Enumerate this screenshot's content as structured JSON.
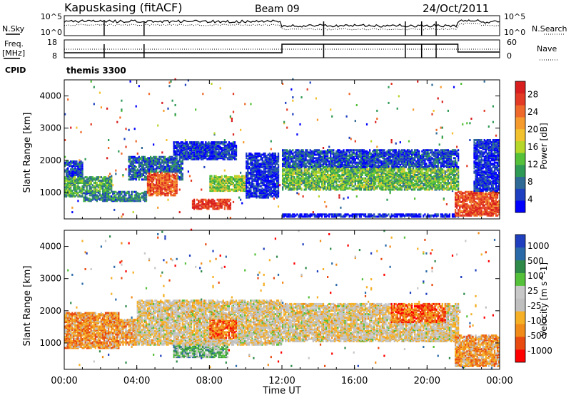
{
  "header": {
    "station": "Kapuskasing (fitACF)",
    "beam": "Beam 09",
    "date": "24/Oct/2011"
  },
  "noise_panel": {
    "left_label": "N.Sky",
    "right_label": "N.Search",
    "left_ticks": [
      "10^5",
      "10^0"
    ],
    "right_ticks": [
      "10^5",
      "10^0"
    ]
  },
  "freq_panel": {
    "left_label_1": "Freq.",
    "left_label_2": "[MHz]",
    "right_label": "Nave",
    "left_ticks": [
      "18",
      "8"
    ],
    "right_ticks": [
      "60",
      "0"
    ]
  },
  "cpid": {
    "label": "CPID",
    "program": "themis 3300"
  },
  "chart_data": [
    {
      "type": "heatmap",
      "panel": "power",
      "xlabel": "",
      "ylabel": "Slant Range [km]",
      "x_ticks": [
        "00:00",
        "04:00",
        "08:00",
        "12:00",
        "16:00",
        "20:00",
        "00:00"
      ],
      "y_ticks": [
        1000,
        2000,
        3000,
        4000
      ],
      "ylim": [
        180,
        4500
      ],
      "xlim_hours": [
        0,
        24
      ],
      "colorbar_label": "Power [dB]",
      "colorbar_ticks": [
        "28",
        "24",
        "20",
        "16",
        "12",
        "8",
        "4"
      ],
      "colorbar_colors": [
        "#0000ff",
        "#1e3fbf",
        "#2f6a96",
        "#2f9a55",
        "#55c03a",
        "#b7d62a",
        "#f2c12e",
        "#f59a2c",
        "#ef6a2a",
        "#e23a24",
        "#d81e1e"
      ],
      "bands": [
        {
          "t0": 0.0,
          "t1": 2.6,
          "r0": 820,
          "r1": 1450,
          "v": 0.35
        },
        {
          "t0": 0.0,
          "t1": 1.0,
          "r0": 1450,
          "r1": 1950,
          "v": 0.15
        },
        {
          "t0": 1.0,
          "t1": 4.5,
          "r0": 700,
          "r1": 1000,
          "v": 0.25
        },
        {
          "t0": 3.5,
          "t1": 6.5,
          "r0": 1350,
          "r1": 2100,
          "v": 0.2
        },
        {
          "t0": 4.5,
          "t1": 6.2,
          "r0": 850,
          "r1": 1600,
          "v": 0.82
        },
        {
          "t0": 6.0,
          "t1": 9.5,
          "r0": 2000,
          "r1": 2550,
          "v": 0.12
        },
        {
          "t0": 7.0,
          "t1": 9.2,
          "r0": 450,
          "r1": 750,
          "v": 0.9
        },
        {
          "t0": 8.0,
          "t1": 10.5,
          "r0": 1000,
          "r1": 1500,
          "v": 0.45
        },
        {
          "t0": 10.0,
          "t1": 11.8,
          "r0": 800,
          "r1": 2200,
          "v": 0.1
        },
        {
          "t0": 12.0,
          "t1": 21.7,
          "r0": 1050,
          "r1": 1750,
          "v": 0.4
        },
        {
          "t0": 12.0,
          "t1": 21.7,
          "r0": 1750,
          "r1": 2300,
          "v": 0.15
        },
        {
          "t0": 12.0,
          "t1": 21.7,
          "r0": 200,
          "r1": 320,
          "v": 0.05
        },
        {
          "t0": 21.5,
          "t1": 24.0,
          "r0": 250,
          "r1": 1000,
          "v": 0.85
        },
        {
          "t0": 22.5,
          "t1": 24.0,
          "r0": 1000,
          "r1": 2600,
          "v": 0.1
        }
      ]
    },
    {
      "type": "heatmap",
      "panel": "velocity",
      "xlabel": "Time UT",
      "ylabel": "Slant Range [km]",
      "x_ticks": [
        "00:00",
        "04:00",
        "08:00",
        "12:00",
        "16:00",
        "20:00",
        "00:00"
      ],
      "y_ticks": [
        1000,
        2000,
        3000,
        4000
      ],
      "ylim": [
        180,
        4500
      ],
      "xlim_hours": [
        0,
        24
      ],
      "colorbar_label": "Velocity [m s^-1]",
      "colorbar_ticks": [
        "1000",
        "500",
        "100",
        "25",
        "-25",
        "-100",
        "-500",
        "-1000"
      ],
      "colorbar_colors": [
        "#ff0000",
        "#e84a10",
        "#f08a18",
        "#f5b025",
        "#bfbfbf",
        "#c8c8c8",
        "#55c03a",
        "#2f8a4a",
        "#2a6aa8",
        "#1f3fbf"
      ],
      "bands": [
        {
          "t0": 0.0,
          "t1": 3.0,
          "r0": 800,
          "r1": 1900,
          "v": 0.28
        },
        {
          "t0": 3.0,
          "t1": 6.5,
          "r0": 900,
          "r1": 1700,
          "v": 0.32
        },
        {
          "t0": 4.0,
          "t1": 12.0,
          "r0": 900,
          "r1": 2300,
          "v": 0.45
        },
        {
          "t0": 6.0,
          "t1": 9.0,
          "r0": 500,
          "r1": 900,
          "v": 0.65
        },
        {
          "t0": 8.0,
          "t1": 9.5,
          "r0": 1100,
          "r1": 1700,
          "v": 0.2
        },
        {
          "t0": 12.0,
          "t1": 21.7,
          "r0": 1000,
          "r1": 2200,
          "v": 0.45
        },
        {
          "t0": 18.0,
          "t1": 21.0,
          "r0": 1600,
          "r1": 2200,
          "v": 0.2
        },
        {
          "t0": 21.5,
          "t1": 24.0,
          "r0": 250,
          "r1": 1200,
          "v": 0.3
        }
      ]
    }
  ]
}
